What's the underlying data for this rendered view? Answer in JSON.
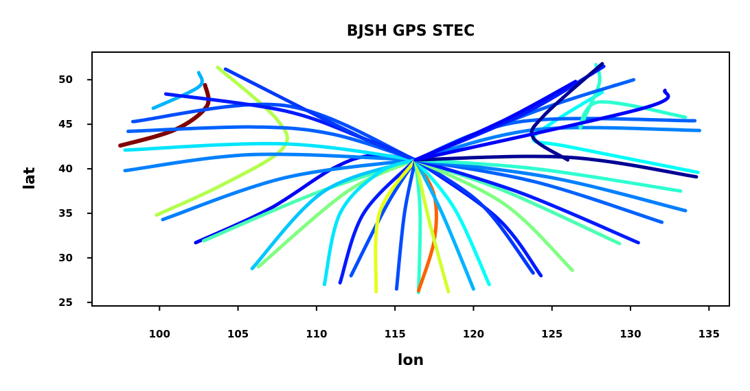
{
  "chart_data": {
    "type": "scatter",
    "title": "BJSH GPS STEC",
    "xlabel": "lon",
    "ylabel": "lat",
    "xlim": [
      95.7,
      136.3
    ],
    "ylim": [
      24.6,
      53.1
    ],
    "xticks": [
      100,
      105,
      110,
      115,
      120,
      125,
      130,
      135
    ],
    "yticks": [
      25,
      30,
      35,
      40,
      45,
      50
    ],
    "colormap": "jet",
    "grid": false,
    "legend": "none",
    "station": [
      116.3,
      41.0
    ],
    "tracks": [
      {
        "points": [
          [
            97.5,
            42.6
          ],
          [
            101,
            44.4
          ],
          [
            103,
            47
          ],
          [
            102.9,
            49.4
          ]
        ],
        "c": 1.0
      },
      {
        "points": [
          [
            99.8,
            34.8
          ],
          [
            104,
            38.2
          ],
          [
            107.8,
            42.2
          ],
          [
            107.5,
            45.5
          ],
          [
            103.7,
            51.4
          ]
        ],
        "c": 0.55
      },
      {
        "points": [
          [
            102.3,
            31.7
          ],
          [
            107,
            35.5
          ],
          [
            111,
            40
          ],
          [
            113.5,
            41.5
          ],
          [
            116.3,
            41
          ]
        ],
        "c": 0.12
      },
      {
        "points": [
          [
            102.8,
            31.9
          ],
          [
            110,
            37.3
          ],
          [
            116.3,
            41
          ]
        ],
        "c": 0.45
      },
      {
        "points": [
          [
            100.2,
            34.3
          ],
          [
            108,
            39
          ],
          [
            116.3,
            41
          ]
        ],
        "c": 0.25
      },
      {
        "points": [
          [
            97.8,
            39.8
          ],
          [
            106,
            41.6
          ],
          [
            116.3,
            41
          ]
        ],
        "c": 0.25
      },
      {
        "points": [
          [
            97.8,
            42.1
          ],
          [
            108,
            42.8
          ],
          [
            116.3,
            41
          ]
        ],
        "c": 0.35
      },
      {
        "points": [
          [
            98,
            44.2
          ],
          [
            106,
            44.7
          ],
          [
            111,
            43.9
          ],
          [
            116.3,
            41
          ]
        ],
        "c": 0.22
      },
      {
        "points": [
          [
            98.3,
            45.3
          ],
          [
            108,
            47.1
          ],
          [
            116.3,
            41
          ]
        ],
        "c": 0.2
      },
      {
        "points": [
          [
            99.6,
            46.8
          ],
          [
            102.5,
            49.2
          ],
          [
            102.5,
            50.8
          ]
        ],
        "c": 0.3
      },
      {
        "points": [
          [
            100.4,
            48.4
          ],
          [
            108,
            46.5
          ],
          [
            113,
            43.4
          ],
          [
            116.3,
            41
          ]
        ],
        "c": 0.15
      },
      {
        "points": [
          [
            104.2,
            51.2
          ],
          [
            110,
            46
          ],
          [
            113.5,
            43
          ],
          [
            116.3,
            41
          ]
        ],
        "c": 0.18
      },
      {
        "points": [
          [
            105.9,
            28.8
          ],
          [
            110.5,
            37.5
          ],
          [
            116.3,
            41
          ]
        ],
        "c": 0.32
      },
      {
        "points": [
          [
            106.3,
            29
          ],
          [
            112,
            37.5
          ],
          [
            116.3,
            41
          ]
        ],
        "c": 0.5
      },
      {
        "points": [
          [
            110.5,
            27
          ],
          [
            111.5,
            35
          ],
          [
            114,
            39.6
          ],
          [
            116.3,
            41
          ]
        ],
        "c": 0.35
      },
      {
        "points": [
          [
            111.5,
            27.2
          ],
          [
            113,
            35
          ],
          [
            116.3,
            41
          ]
        ],
        "c": 0.15
      },
      {
        "points": [
          [
            112.2,
            28
          ],
          [
            114.5,
            36
          ],
          [
            116.3,
            41
          ]
        ],
        "c": 0.2
      },
      {
        "points": [
          [
            113.8,
            26.2
          ],
          [
            114,
            35
          ],
          [
            116.3,
            41
          ]
        ],
        "c": 0.6
      },
      {
        "points": [
          [
            115.1,
            26.5
          ],
          [
            115.6,
            35
          ],
          [
            116.3,
            41
          ]
        ],
        "c": 0.2
      },
      {
        "points": [
          [
            116.5,
            26.1
          ],
          [
            116.6,
            35
          ],
          [
            116.3,
            41
          ]
        ],
        "c": 0.42
      },
      {
        "points": [
          [
            116.5,
            26.3
          ],
          [
            117.5,
            32
          ],
          [
            117.5,
            37
          ],
          [
            116.3,
            41
          ]
        ],
        "c": 0.78
      },
      {
        "points": [
          [
            118.4,
            26.2
          ],
          [
            117.2,
            34
          ],
          [
            116.3,
            41
          ]
        ],
        "c": 0.58
      },
      {
        "points": [
          [
            120,
            26.5
          ],
          [
            118,
            35
          ],
          [
            116.3,
            41
          ]
        ],
        "c": 0.3
      },
      {
        "points": [
          [
            121,
            27
          ],
          [
            118.8,
            35.5
          ],
          [
            116.3,
            41
          ]
        ],
        "c": 0.38
      },
      {
        "points": [
          [
            124.3,
            28
          ],
          [
            121.5,
            34.5
          ],
          [
            116.3,
            41
          ]
        ],
        "c": 0.15
      },
      {
        "points": [
          [
            123.8,
            28.3
          ],
          [
            120.5,
            36
          ],
          [
            116.3,
            41
          ]
        ],
        "c": 0.18
      },
      {
        "points": [
          [
            126.3,
            28.6
          ],
          [
            122,
            36
          ],
          [
            116.3,
            41
          ]
        ],
        "c": 0.5
      },
      {
        "points": [
          [
            129.3,
            31.6
          ],
          [
            122,
            37.5
          ],
          [
            116.3,
            41
          ]
        ],
        "c": 0.45
      },
      {
        "points": [
          [
            130.5,
            31.7
          ],
          [
            123,
            37.3
          ],
          [
            116.3,
            41
          ]
        ],
        "c": 0.15
      },
      {
        "points": [
          [
            132,
            34
          ],
          [
            124,
            38.5
          ],
          [
            116.3,
            41
          ]
        ],
        "c": 0.22
      },
      {
        "points": [
          [
            133.5,
            35.3
          ],
          [
            125,
            39
          ],
          [
            116.3,
            41
          ]
        ],
        "c": 0.25
      },
      {
        "points": [
          [
            133.2,
            37.5
          ],
          [
            124,
            40
          ],
          [
            116.3,
            41
          ]
        ],
        "c": 0.42
      },
      {
        "points": [
          [
            134.3,
            39.6
          ],
          [
            126,
            42.5
          ],
          [
            123.8,
            43.3
          ],
          [
            125.3,
            45.5
          ],
          [
            128.2,
            48.6
          ]
        ],
        "c": 0.38
      },
      {
        "points": [
          [
            134.2,
            39.1
          ],
          [
            126,
            41.3
          ],
          [
            116.3,
            41
          ]
        ],
        "c": 0.02
      },
      {
        "points": [
          [
            134.4,
            44.3
          ],
          [
            124,
            44.4
          ],
          [
            116.3,
            41
          ]
        ],
        "c": 0.25
      },
      {
        "points": [
          [
            134.1,
            45.4
          ],
          [
            123,
            45.3
          ],
          [
            116.3,
            41
          ]
        ],
        "c": 0.22
      },
      {
        "points": [
          [
            133.5,
            45.8
          ],
          [
            128,
            47.5
          ],
          [
            126.8,
            44.6
          ],
          [
            128,
            49.5
          ],
          [
            127.8,
            51.7
          ]
        ],
        "c": 0.42
      },
      {
        "points": [
          [
            130.2,
            50
          ],
          [
            124,
            46.5
          ],
          [
            116.3,
            41
          ]
        ],
        "c": 0.22
      },
      {
        "points": [
          [
            128.3,
            51.5
          ],
          [
            123,
            46
          ],
          [
            116.3,
            41
          ]
        ],
        "c": 0.15
      },
      {
        "points": [
          [
            128.2,
            51.8
          ],
          [
            124.5,
            46
          ],
          [
            123.8,
            43.5
          ],
          [
            126,
            41
          ]
        ],
        "c": 0.02
      },
      {
        "points": [
          [
            126.5,
            49.8
          ],
          [
            122,
            45.5
          ],
          [
            116.3,
            41
          ]
        ],
        "c": 0.12
      },
      {
        "points": [
          [
            132.2,
            48.8
          ],
          [
            130.8,
            46.8
          ],
          [
            116.3,
            41
          ]
        ],
        "c": 0.12
      }
    ]
  }
}
